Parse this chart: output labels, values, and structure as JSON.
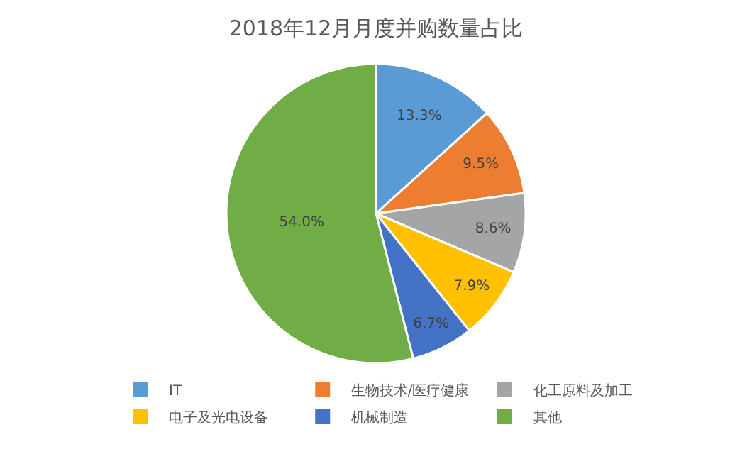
{
  "chart_data": {
    "type": "pie",
    "title": "2018年12月月度并购数量占比",
    "categories": [
      "IT",
      "生物技术/医疗健康",
      "化工原料及加工",
      "电子及光电设备",
      "机械制造",
      "其他"
    ],
    "values": [
      13.3,
      9.5,
      8.6,
      7.9,
      6.7,
      54.0
    ],
    "value_labels": [
      "13.3%",
      "9.5%",
      "8.6%",
      "7.9%",
      "6.7%",
      "54.0%"
    ],
    "colors": [
      "#5b9bd5",
      "#ed7d31",
      "#a5a5a5",
      "#ffc000",
      "#4472c4",
      "#70ad47"
    ],
    "legend": "bottom"
  }
}
